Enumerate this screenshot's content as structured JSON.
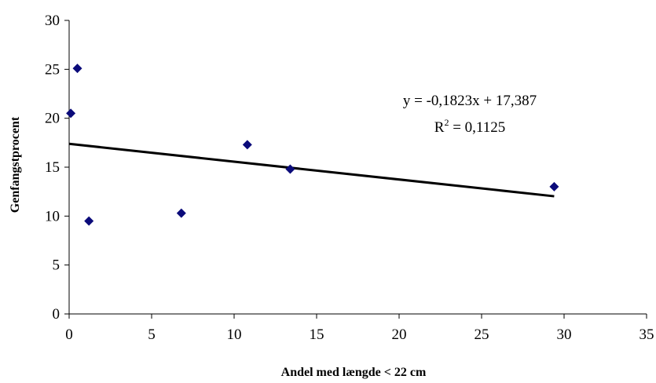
{
  "chart_data": {
    "type": "scatter",
    "xlabel": "Andel med længde < 22 cm",
    "ylabel": "Genfangstprocent",
    "xlim": [
      0,
      35
    ],
    "ylim": [
      0,
      30
    ],
    "x_ticks": [
      0,
      5,
      10,
      15,
      20,
      25,
      30,
      35
    ],
    "y_ticks": [
      0,
      5,
      10,
      15,
      20,
      25,
      30
    ],
    "grid": false,
    "legend": "none",
    "series": [
      {
        "points": [
          {
            "x": 0.1,
            "y": 20.5
          },
          {
            "x": 0.5,
            "y": 25.1
          },
          {
            "x": 1.2,
            "y": 9.5
          },
          {
            "x": 6.8,
            "y": 10.3
          },
          {
            "x": 10.8,
            "y": 17.3
          },
          {
            "x": 13.4,
            "y": 14.8
          },
          {
            "x": 29.4,
            "y": 13.0
          }
        ],
        "marker": "diamond",
        "color": "#0b0b7a"
      }
    ],
    "trendline": {
      "type": "linear",
      "slope": -0.1823,
      "intercept": 17.387,
      "x_range": [
        0,
        29.4
      ],
      "color": "#000000",
      "equation_text": "y = -0,1823x + 17,387",
      "r2_prefix": "R",
      "r2_sup": "2",
      "r2_value": " = 0,1125"
    }
  }
}
